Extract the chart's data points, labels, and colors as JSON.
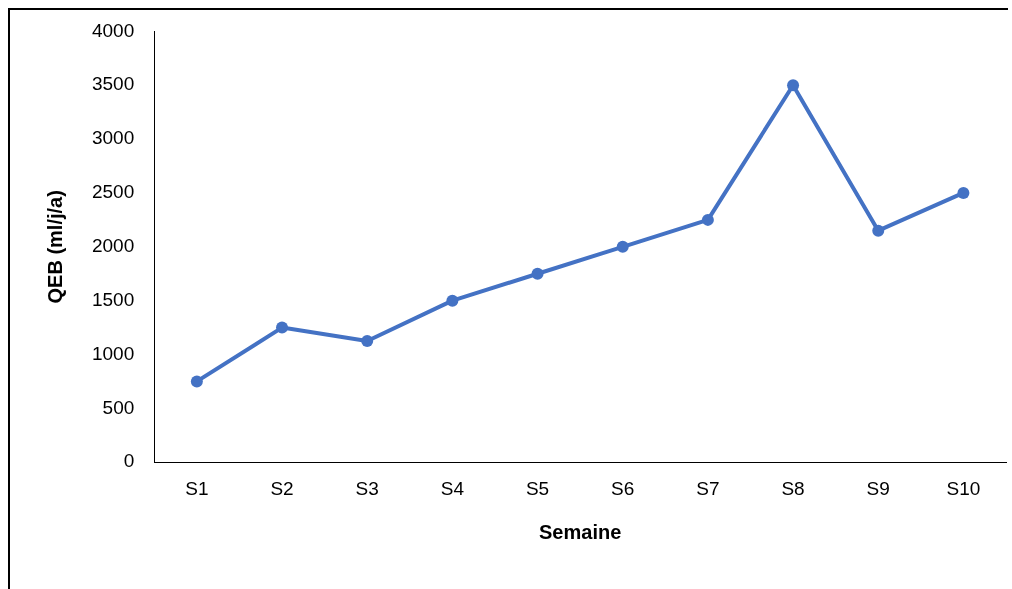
{
  "chart_data": {
    "type": "line",
    "xlabel": "Semaine",
    "ylabel": "QEB (ml/j/a)",
    "categories": [
      "S1",
      "S2",
      "S3",
      "S4",
      "S5",
      "S6",
      "S7",
      "S8",
      "S9",
      "S10"
    ],
    "series": [
      {
        "color": "#4472c4",
        "values": [
          750,
          1250,
          1125,
          1500,
          1750,
          2000,
          2250,
          3500,
          2150,
          2500
        ]
      }
    ],
    "ylim": [
      0,
      4000
    ],
    "yticks": [
      0,
      500,
      1000,
      1500,
      2000,
      2500,
      3000,
      3500,
      4000
    ],
    "grid": false,
    "legend": false,
    "marker": "circle",
    "line_style": "solid"
  }
}
